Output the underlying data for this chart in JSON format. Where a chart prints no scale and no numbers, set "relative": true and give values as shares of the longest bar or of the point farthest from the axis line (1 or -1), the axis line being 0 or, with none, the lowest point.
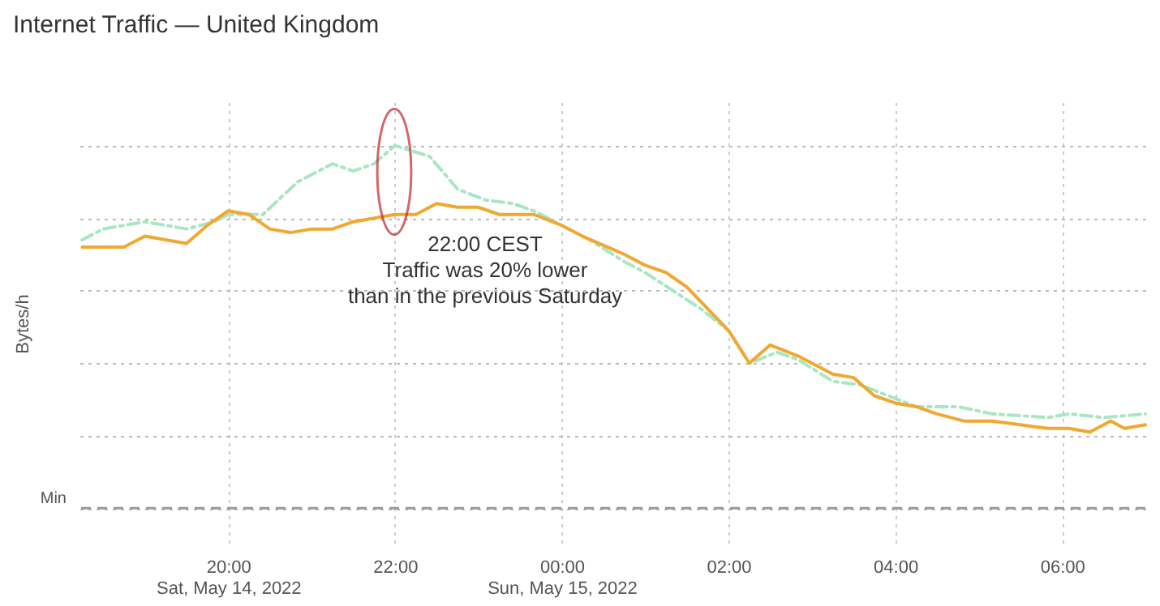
{
  "chart_data": {
    "type": "line",
    "title": "Internet Traffic — United Kingdom",
    "ylabel": "Bytes/h",
    "relative": true,
    "grid": true,
    "marker": "none",
    "xlim": [
      "2022-05-14T18:13",
      "2022-05-15T07:00"
    ],
    "xticks": [
      {
        "value": "2022-05-14T20:00",
        "label": "20:00\nSat, May 14, 2022"
      },
      {
        "value": "2022-05-14T22:00",
        "label": "22:00"
      },
      {
        "value": "2022-05-15T00:00",
        "label": "00:00\nSun, May 15, 2022"
      },
      {
        "value": "2022-05-15T02:00",
        "label": "02:00"
      },
      {
        "value": "2022-05-15T04:00",
        "label": "04:00"
      },
      {
        "value": "2022-05-15T06:00",
        "label": "06:00"
      }
    ],
    "series": [
      {
        "color": "#a8e6c4",
        "line_style": "dashed",
        "x": [
          "2022-05-14T18:15",
          "2022-05-14T18:30",
          "2022-05-14T19:00",
          "2022-05-14T19:30",
          "2022-05-14T19:50",
          "2022-05-14T20:00",
          "2022-05-14T20:25",
          "2022-05-14T20:50",
          "2022-05-14T21:15",
          "2022-05-14T21:30",
          "2022-05-14T21:45",
          "2022-05-14T22:00",
          "2022-05-14T22:25",
          "2022-05-14T22:45",
          "2022-05-14T23:05",
          "2022-05-14T23:25",
          "2022-05-14T23:40",
          "2022-05-15T00:00",
          "2022-05-15T00:20",
          "2022-05-15T00:45",
          "2022-05-15T01:00",
          "2022-05-15T01:20",
          "2022-05-15T01:40",
          "2022-05-15T02:00",
          "2022-05-15T02:15",
          "2022-05-15T02:35",
          "2022-05-15T02:50",
          "2022-05-15T03:15",
          "2022-05-15T03:35",
          "2022-05-15T03:55",
          "2022-05-15T04:15",
          "2022-05-15T04:45",
          "2022-05-15T05:10",
          "2022-05-15T05:50",
          "2022-05-15T06:05",
          "2022-05-15T06:30",
          "2022-05-15T07:00"
        ],
        "values": [
          0.74,
          0.77,
          0.79,
          0.77,
          0.79,
          0.81,
          0.81,
          0.9,
          0.95,
          0.93,
          0.95,
          1.0,
          0.97,
          0.88,
          0.85,
          0.84,
          0.82,
          0.78,
          0.74,
          0.68,
          0.65,
          0.6,
          0.55,
          0.49,
          0.4,
          0.43,
          0.41,
          0.35,
          0.34,
          0.31,
          0.28,
          0.28,
          0.26,
          0.25,
          0.26,
          0.25,
          0.26
        ]
      },
      {
        "color": "#f0a830",
        "line_style": "solid",
        "x": [
          "2022-05-14T18:15",
          "2022-05-14T18:45",
          "2022-05-14T19:00",
          "2022-05-14T19:30",
          "2022-05-14T19:45",
          "2022-05-14T20:00",
          "2022-05-14T20:15",
          "2022-05-14T20:30",
          "2022-05-14T20:45",
          "2022-05-14T21:00",
          "2022-05-14T21:15",
          "2022-05-14T21:30",
          "2022-05-14T21:45",
          "2022-05-14T22:00",
          "2022-05-14T22:15",
          "2022-05-14T22:30",
          "2022-05-14T22:45",
          "2022-05-14T23:00",
          "2022-05-14T23:15",
          "2022-05-14T23:40",
          "2022-05-15T00:00",
          "2022-05-15T00:15",
          "2022-05-15T00:45",
          "2022-05-15T01:00",
          "2022-05-15T01:15",
          "2022-05-15T01:30",
          "2022-05-15T01:45",
          "2022-05-15T02:00",
          "2022-05-15T02:15",
          "2022-05-15T02:30",
          "2022-05-15T02:50",
          "2022-05-15T03:15",
          "2022-05-15T03:30",
          "2022-05-15T03:45",
          "2022-05-15T04:00",
          "2022-05-15T04:15",
          "2022-05-15T04:30",
          "2022-05-15T04:50",
          "2022-05-15T05:10",
          "2022-05-15T05:30",
          "2022-05-15T05:50",
          "2022-05-15T06:05",
          "2022-05-15T06:20",
          "2022-05-15T06:35",
          "2022-05-15T06:45",
          "2022-05-15T07:00"
        ],
        "values": [
          0.72,
          0.72,
          0.75,
          0.73,
          0.78,
          0.82,
          0.81,
          0.77,
          0.76,
          0.77,
          0.77,
          0.79,
          0.8,
          0.81,
          0.81,
          0.84,
          0.83,
          0.83,
          0.81,
          0.81,
          0.78,
          0.75,
          0.7,
          0.67,
          0.65,
          0.61,
          0.55,
          0.49,
          0.4,
          0.45,
          0.42,
          0.37,
          0.36,
          0.31,
          0.29,
          0.28,
          0.26,
          0.24,
          0.24,
          0.23,
          0.22,
          0.22,
          0.21,
          0.24,
          0.22,
          0.23
        ]
      }
    ],
    "ref_lines": [
      {
        "axis": "y",
        "value": 0,
        "label": "Min",
        "color": "#999999",
        "line_style": "dashed"
      }
    ],
    "annotations": [
      "22:00 CEST\nTraffic was 20% lower\nthan in the previous Saturday"
    ]
  }
}
